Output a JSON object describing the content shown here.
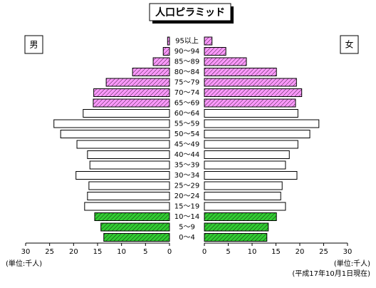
{
  "chart_data": {
    "type": "pyramid",
    "title": "人口ピラミッド",
    "left_label": "男",
    "right_label": "女",
    "left_unit": "(単位:千人)",
    "right_unit": "(単位:千人)",
    "note": "(平成17年10月1日現在)",
    "categories": [
      "0～4",
      "5～9",
      "10～14",
      "15～19",
      "20～24",
      "25～29",
      "30～34",
      "35～39",
      "40～44",
      "45～49",
      "50～54",
      "55～59",
      "60～64",
      "65～69",
      "70～74",
      "75～79",
      "80～84",
      "85～89",
      "90～94",
      "95以上"
    ],
    "series": [
      {
        "name": "男",
        "side": "left",
        "values": [
          13.7,
          14.3,
          15.6,
          17.7,
          17.1,
          16.8,
          19.5,
          16.6,
          17.1,
          19.3,
          22.7,
          24.1,
          18.0,
          15.9,
          15.8,
          13.2,
          7.7,
          3.4,
          1.3,
          0.4
        ],
        "colors": [
          "#33cc33",
          "#33cc33",
          "#33cc33",
          "#ffffff",
          "#ffffff",
          "#ffffff",
          "#ffffff",
          "#ffffff",
          "#ffffff",
          "#ffffff",
          "#ffffff",
          "#ffffff",
          "#ffffff",
          "#ff99ff",
          "#ff99ff",
          "#ff99ff",
          "#ff99ff",
          "#ff99ff",
          "#ff99ff",
          "#ff99ff"
        ]
      },
      {
        "name": "女",
        "side": "right",
        "values": [
          13.1,
          13.4,
          15.1,
          17.0,
          16.0,
          16.3,
          19.4,
          17.0,
          17.8,
          19.6,
          22.1,
          24.0,
          19.6,
          19.1,
          20.4,
          19.3,
          15.1,
          8.8,
          4.5,
          1.6
        ],
        "colors": [
          "#33cc33",
          "#33cc33",
          "#33cc33",
          "#ffffff",
          "#ffffff",
          "#ffffff",
          "#ffffff",
          "#ffffff",
          "#ffffff",
          "#ffffff",
          "#ffffff",
          "#ffffff",
          "#ffffff",
          "#ff99ff",
          "#ff99ff",
          "#ff99ff",
          "#ff99ff",
          "#ff99ff",
          "#ff99ff",
          "#ff99ff"
        ]
      }
    ],
    "xlim": [
      0,
      30
    ],
    "xticks": [
      0,
      5,
      10,
      15,
      20,
      25,
      30
    ]
  }
}
